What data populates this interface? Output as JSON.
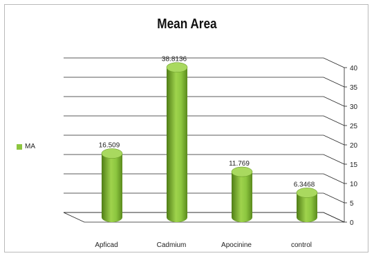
{
  "chart_data": {
    "type": "bar",
    "title": "Mean Area",
    "categories": [
      "Apficad",
      "Cadmium",
      "Apocinine",
      "control"
    ],
    "series": [
      {
        "name": "MA",
        "values": [
          16.509,
          38.8136,
          11.769,
          6.3468
        ],
        "value_labels": [
          "16.509",
          "38.8136",
          "11.769",
          "6.3468"
        ]
      }
    ],
    "xlabel": "",
    "ylabel": "",
    "ylim": [
      0,
      40
    ],
    "yticks": [
      0,
      5,
      10,
      15,
      20,
      25,
      30,
      35,
      40
    ],
    "grid": true,
    "legend_position": "left",
    "colors": {
      "bar": "#8dc63f",
      "bar_dark": "#5a8a1c",
      "bar_light": "#b9e07a",
      "grid": "#222222"
    }
  }
}
